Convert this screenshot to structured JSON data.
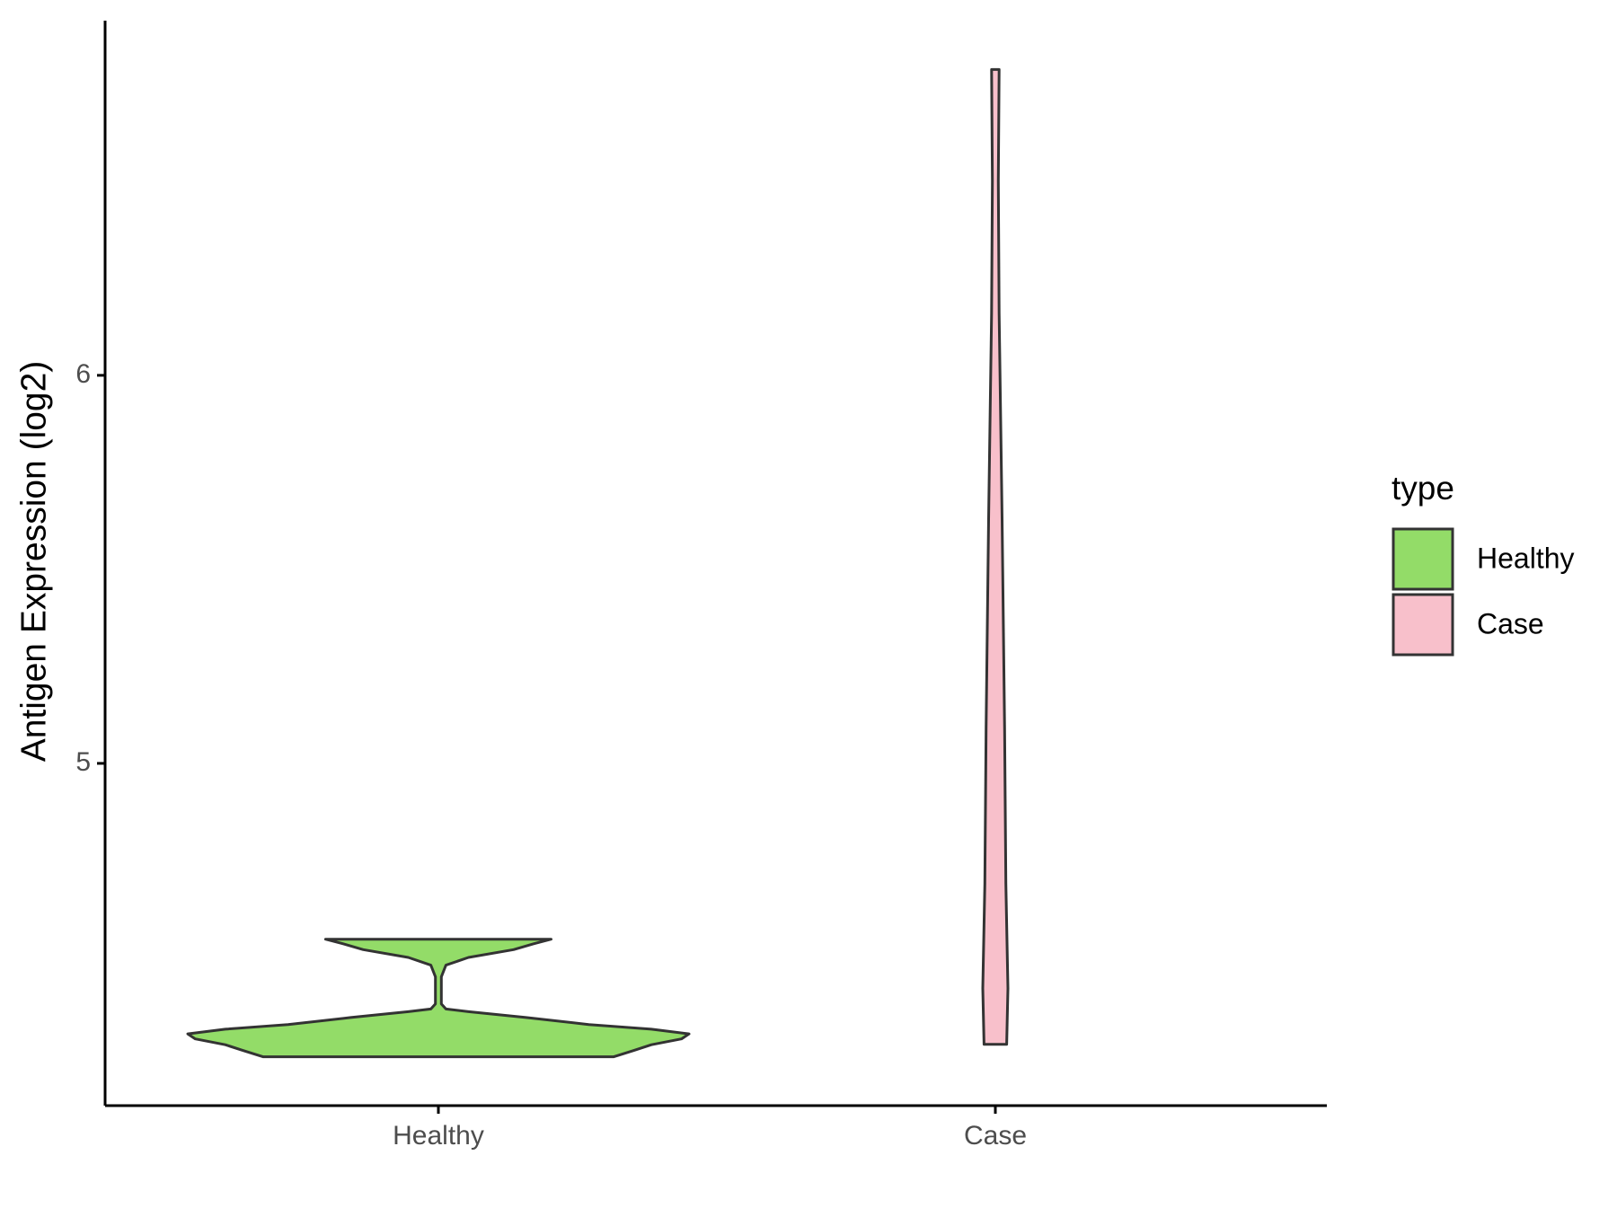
{
  "chart_data": {
    "type": "violin",
    "y_label": "Antigen Expression (log2)",
    "categories": [
      "Healthy",
      "Case"
    ],
    "violins": [
      {
        "name": "Healthy",
        "color": "#93dc68",
        "y": [
          4.244,
          4.26,
          4.275,
          4.29,
          4.303,
          4.315,
          4.327,
          4.345,
          4.36,
          4.367,
          4.38,
          4.45,
          4.48,
          4.5,
          4.52,
          4.535,
          4.547
        ],
        "width": [
          0.7,
          0.78,
          0.85,
          0.97,
          1.0,
          0.85,
          0.6,
          0.35,
          0.12,
          0.03,
          0.012,
          0.012,
          0.03,
          0.12,
          0.3,
          0.38,
          0.45
        ]
      },
      {
        "name": "Case",
        "color": "#f8c0cb",
        "y": [
          4.276,
          4.42,
          4.69,
          5.09,
          5.63,
          6.16,
          6.5,
          6.788
        ],
        "width": [
          0.045,
          0.05,
          0.042,
          0.037,
          0.027,
          0.015,
          0.012,
          0.015
        ]
      }
    ],
    "ylim": [
      4.118,
      6.914
    ],
    "yticks": [
      5,
      6
    ],
    "legend_title": "type",
    "legend_position": "right"
  }
}
